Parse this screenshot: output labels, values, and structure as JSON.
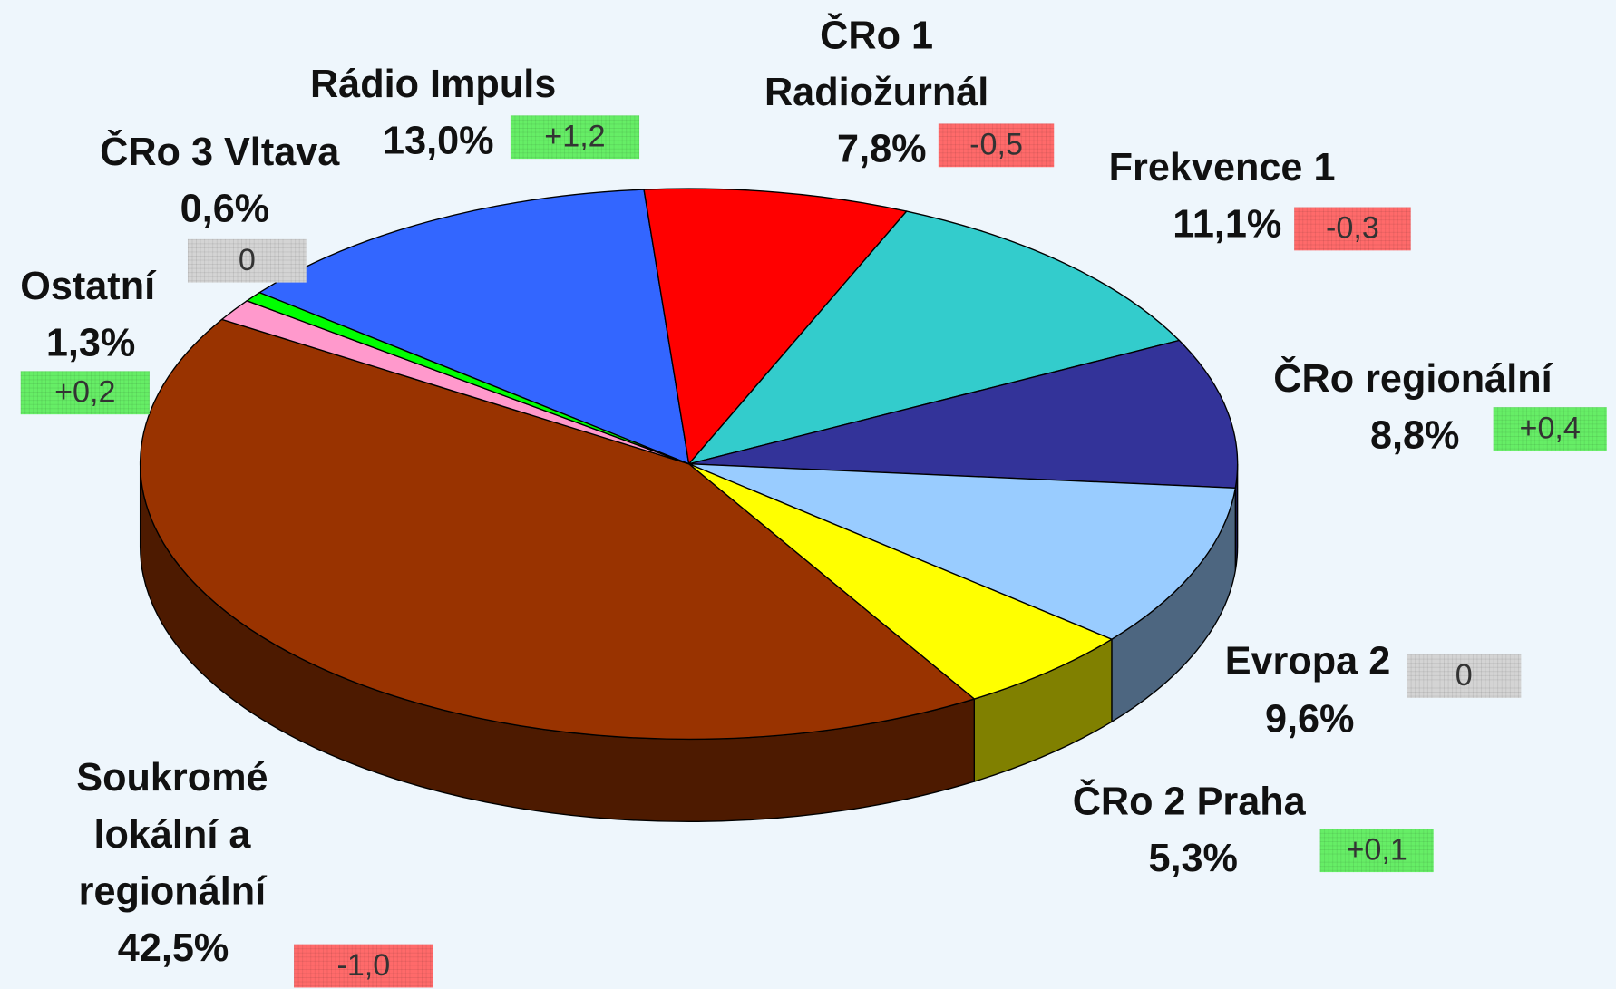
{
  "chart_data": {
    "type": "pie",
    "categories": [
      "Rádio Impuls",
      "ČRo 1 Radiožurnál",
      "Frekvence 1",
      "ČRo regionální",
      "Evropa 2",
      "ČRo 2 Praha",
      "Soukromé lokální a regionální",
      "Ostatní",
      "ČRo 3 Vltava"
    ],
    "values": [
      13.0,
      7.8,
      11.1,
      8.8,
      9.6,
      5.3,
      42.5,
      1.3,
      0.6
    ],
    "value_labels": [
      "13,0%",
      "7,8%",
      "11,1%",
      "8,8%",
      "9,6%",
      "5,3%",
      "42,5%",
      "1,3%",
      "0,6%"
    ],
    "changes": [
      1.2,
      -0.5,
      -0.3,
      0.4,
      0,
      0.1,
      -1.0,
      0.2,
      0
    ],
    "change_labels": [
      "+1,2",
      "-0,5",
      "-0,3",
      "+0,4",
      "0",
      "+0,1",
      "-1,0",
      "+0,2",
      "0"
    ],
    "colors": [
      "#3366ff",
      "#ff0000",
      "#33cccc",
      "#333399",
      "#99ccff",
      "#ffff00",
      "#993300",
      "#ff99cc",
      "#00ff00"
    ]
  }
}
